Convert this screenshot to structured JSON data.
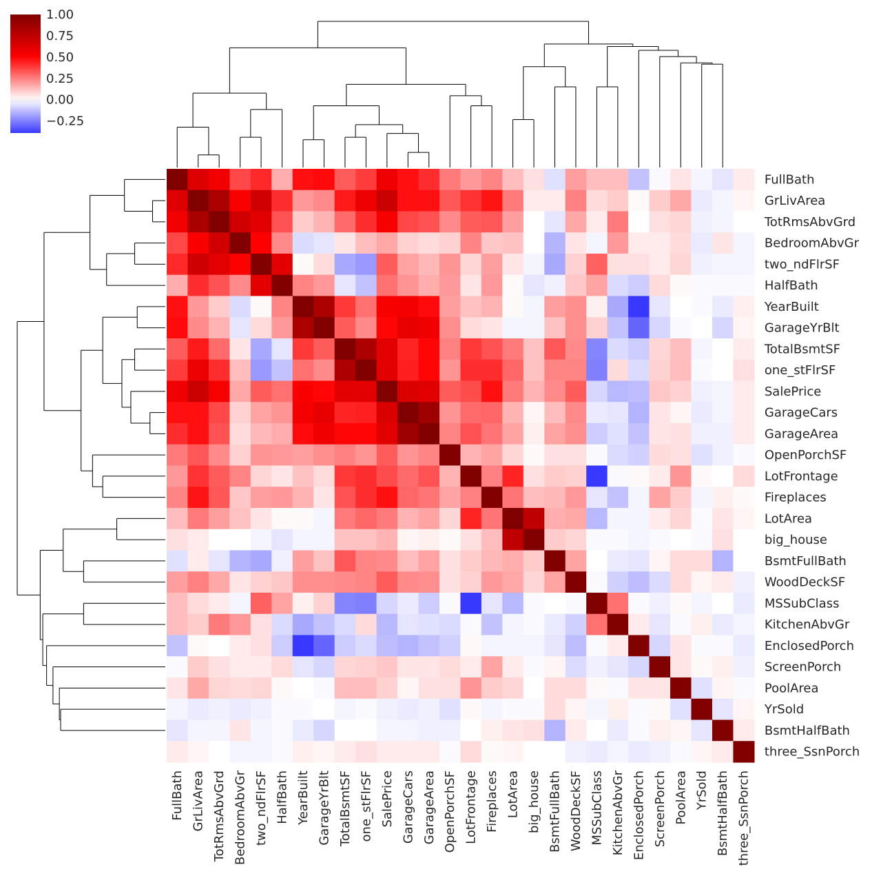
{
  "chart_data": {
    "type": "heatmap",
    "variant": "clustermap",
    "title": "",
    "xlabel": "",
    "ylabel": "",
    "labels": [
      "FullBath",
      "GrLivArea",
      "TotRmsAbvGrd",
      "BedroomAbvGr",
      "two_ndFlrSF",
      "HalfBath",
      "YearBuilt",
      "GarageYrBlt",
      "TotalBsmtSF",
      "one_stFlrSF",
      "SalePrice",
      "GarageCars",
      "GarageArea",
      "OpenPorchSF",
      "LotFrontage",
      "Fireplaces",
      "LotArea",
      "big_house",
      "BsmtFullBath",
      "WoodDeckSF",
      "MSSubClass",
      "KitchenAbvGr",
      "EnclosedPorch",
      "ScreenPorch",
      "PoolArea",
      "YrSold",
      "BsmtHalfBath",
      "three_SsnPorch"
    ],
    "matrix": [
      [
        1.0,
        0.63,
        0.55,
        0.36,
        0.42,
        0.16,
        0.47,
        0.48,
        0.32,
        0.38,
        0.56,
        0.47,
        0.41,
        0.26,
        0.2,
        0.24,
        0.13,
        0.06,
        -0.06,
        0.19,
        0.13,
        0.13,
        -0.12,
        -0.01,
        0.05,
        -0.02,
        -0.05,
        0.04
      ],
      [
        0.63,
        1.0,
        0.83,
        0.52,
        0.69,
        0.41,
        0.2,
        0.23,
        0.45,
        0.57,
        0.71,
        0.47,
        0.47,
        0.33,
        0.4,
        0.46,
        0.26,
        0.04,
        0.04,
        0.25,
        0.07,
        0.1,
        0.01,
        0.1,
        0.17,
        -0.04,
        -0.02,
        0.02
      ],
      [
        0.55,
        0.83,
        1.0,
        0.68,
        0.62,
        0.34,
        0.1,
        0.15,
        0.29,
        0.41,
        0.53,
        0.36,
        0.34,
        0.23,
        0.32,
        0.33,
        0.19,
        0.0,
        -0.05,
        0.17,
        0.04,
        0.26,
        0.0,
        0.06,
        0.08,
        -0.03,
        -0.02,
        0.0
      ],
      [
        0.36,
        0.52,
        0.68,
        1.0,
        0.5,
        0.23,
        -0.07,
        -0.05,
        0.05,
        0.13,
        0.17,
        0.09,
        0.07,
        0.09,
        0.24,
        0.11,
        0.12,
        0.0,
        -0.15,
        0.05,
        -0.02,
        0.2,
        0.04,
        0.04,
        0.07,
        -0.04,
        0.05,
        -0.02
      ],
      [
        0.42,
        0.69,
        0.62,
        0.5,
        1.0,
        0.61,
        0.01,
        0.07,
        -0.17,
        -0.2,
        0.32,
        0.18,
        0.14,
        0.21,
        0.08,
        0.19,
        0.05,
        -0.02,
        -0.17,
        0.09,
        0.31,
        0.06,
        0.06,
        0.04,
        0.08,
        -0.03,
        -0.02,
        -0.02
      ],
      [
        0.16,
        0.41,
        0.34,
        0.23,
        0.61,
        1.0,
        0.24,
        0.2,
        -0.05,
        -0.12,
        0.28,
        0.21,
        0.16,
        0.2,
        0.05,
        0.2,
        0.01,
        -0.05,
        -0.03,
        0.11,
        0.18,
        -0.07,
        -0.1,
        0.07,
        0.01,
        -0.01,
        -0.01,
        -0.01
      ],
      [
        0.47,
        0.2,
        0.1,
        -0.07,
        0.01,
        0.24,
        1.0,
        0.83,
        0.39,
        0.28,
        0.52,
        0.54,
        0.48,
        0.19,
        0.12,
        0.15,
        0.01,
        -0.02,
        0.19,
        0.22,
        0.03,
        -0.17,
        -0.39,
        -0.05,
        0.0,
        -0.01,
        -0.04,
        0.03
      ],
      [
        0.48,
        0.23,
        0.15,
        -0.05,
        0.07,
        0.2,
        0.83,
        1.0,
        0.32,
        0.23,
        0.49,
        0.59,
        0.56,
        0.22,
        0.07,
        0.05,
        -0.02,
        -0.02,
        0.12,
        0.22,
        0.09,
        -0.12,
        -0.3,
        -0.08,
        -0.01,
        0.0,
        -0.08,
        0.02
      ],
      [
        0.32,
        0.45,
        0.29,
        0.05,
        -0.17,
        -0.05,
        0.39,
        0.32,
        1.0,
        0.82,
        0.61,
        0.43,
        0.49,
        0.25,
        0.39,
        0.34,
        0.26,
        0.12,
        0.33,
        0.23,
        -0.24,
        -0.07,
        -0.1,
        0.08,
        0.13,
        -0.02,
        0.0,
        0.04
      ],
      [
        0.38,
        0.57,
        0.41,
        0.13,
        -0.2,
        -0.12,
        0.28,
        0.23,
        0.82,
        1.0,
        0.61,
        0.44,
        0.49,
        0.21,
        0.41,
        0.41,
        0.3,
        0.12,
        0.24,
        0.24,
        -0.25,
        0.07,
        -0.07,
        0.09,
        0.13,
        -0.01,
        0.0,
        0.06
      ],
      [
        0.56,
        0.71,
        0.53,
        0.17,
        0.32,
        0.28,
        0.52,
        0.49,
        0.61,
        0.61,
        1.0,
        0.64,
        0.62,
        0.32,
        0.35,
        0.47,
        0.26,
        0.15,
        0.23,
        0.32,
        -0.08,
        -0.14,
        -0.13,
        0.11,
        0.09,
        -0.03,
        -0.02,
        0.04
      ],
      [
        0.47,
        0.47,
        0.36,
        0.09,
        0.18,
        0.21,
        0.54,
        0.59,
        0.43,
        0.44,
        0.64,
        1.0,
        0.88,
        0.21,
        0.29,
        0.3,
        0.15,
        0.02,
        0.13,
        0.23,
        -0.04,
        -0.05,
        -0.15,
        0.05,
        0.02,
        -0.04,
        -0.02,
        0.04
      ],
      [
        0.41,
        0.47,
        0.34,
        0.07,
        0.14,
        0.16,
        0.48,
        0.56,
        0.49,
        0.49,
        0.62,
        0.88,
        1.0,
        0.24,
        0.34,
        0.27,
        0.18,
        0.03,
        0.18,
        0.22,
        -0.1,
        -0.06,
        -0.12,
        0.05,
        0.06,
        -0.03,
        -0.03,
        0.04
      ],
      [
        0.26,
        0.33,
        0.23,
        0.09,
        0.21,
        0.2,
        0.19,
        0.22,
        0.25,
        0.21,
        0.32,
        0.21,
        0.24,
        1.0,
        0.15,
        0.18,
        0.08,
        0.01,
        0.06,
        0.06,
        -0.01,
        -0.07,
        -0.09,
        0.07,
        0.06,
        -0.06,
        -0.03,
        -0.01
      ],
      [
        0.2,
        0.4,
        0.32,
        0.24,
        0.08,
        0.05,
        0.12,
        0.07,
        0.39,
        0.41,
        0.35,
        0.29,
        0.34,
        0.15,
        1.0,
        0.25,
        0.43,
        0.06,
        0.1,
        0.09,
        -0.39,
        -0.01,
        0.01,
        0.04,
        0.21,
        0.01,
        0.0,
        0.07
      ],
      [
        0.24,
        0.46,
        0.33,
        0.11,
        0.19,
        0.2,
        0.15,
        0.05,
        0.34,
        0.41,
        0.47,
        0.3,
        0.27,
        0.18,
        0.25,
        1.0,
        0.27,
        0.13,
        0.14,
        0.2,
        -0.05,
        -0.12,
        -0.02,
        0.18,
        0.1,
        -0.02,
        0.03,
        0.01
      ],
      [
        0.13,
        0.26,
        0.19,
        0.12,
        0.05,
        0.01,
        0.01,
        -0.02,
        0.26,
        0.3,
        0.26,
        0.15,
        0.18,
        0.08,
        0.43,
        0.27,
        1.0,
        0.75,
        0.16,
        0.17,
        -0.14,
        -0.02,
        -0.02,
        0.04,
        0.08,
        -0.01,
        0.05,
        0.02
      ],
      [
        0.06,
        0.04,
        0.0,
        0.0,
        -0.02,
        -0.05,
        -0.02,
        -0.02,
        0.12,
        0.12,
        0.15,
        0.02,
        0.03,
        0.01,
        0.06,
        0.13,
        0.75,
        1.0,
        0.1,
        0.08,
        -0.01,
        -0.01,
        -0.02,
        -0.01,
        0.0,
        -0.01,
        0.06,
        0.0
      ],
      [
        -0.06,
        0.04,
        -0.05,
        -0.15,
        -0.17,
        -0.03,
        0.19,
        0.12,
        0.33,
        0.24,
        0.23,
        0.13,
        0.18,
        0.06,
        0.1,
        0.14,
        0.16,
        0.1,
        1.0,
        0.18,
        0.0,
        -0.04,
        -0.05,
        0.02,
        0.07,
        0.07,
        -0.15,
        0.0
      ],
      [
        0.19,
        0.25,
        0.17,
        0.05,
        0.09,
        0.11,
        0.22,
        0.22,
        0.23,
        0.24,
        0.32,
        0.23,
        0.22,
        0.06,
        0.09,
        0.2,
        0.17,
        0.08,
        0.18,
        1.0,
        -0.01,
        -0.09,
        -0.13,
        -0.07,
        0.07,
        0.02,
        0.04,
        -0.03
      ],
      [
        0.13,
        0.07,
        0.04,
        -0.02,
        0.31,
        0.18,
        0.03,
        0.09,
        -0.24,
        -0.25,
        -0.08,
        -0.04,
        -0.1,
        -0.01,
        -0.39,
        -0.05,
        -0.14,
        -0.01,
        0.0,
        -0.01,
        1.0,
        0.28,
        -0.01,
        -0.03,
        0.01,
        -0.02,
        0.0,
        -0.04
      ],
      [
        0.13,
        0.1,
        0.26,
        0.2,
        0.06,
        -0.07,
        -0.17,
        -0.12,
        -0.07,
        0.07,
        -0.14,
        -0.05,
        -0.06,
        -0.07,
        -0.01,
        -0.12,
        -0.02,
        -0.01,
        -0.04,
        -0.09,
        0.28,
        1.0,
        0.04,
        -0.05,
        -0.01,
        0.03,
        -0.04,
        -0.02
      ],
      [
        -0.12,
        0.01,
        0.0,
        0.04,
        0.06,
        -0.1,
        -0.39,
        -0.3,
        -0.1,
        -0.07,
        -0.13,
        -0.15,
        -0.12,
        -0.09,
        0.01,
        -0.02,
        -0.02,
        -0.02,
        -0.05,
        -0.13,
        -0.01,
        0.04,
        1.0,
        -0.08,
        0.05,
        -0.01,
        -0.01,
        -0.04
      ],
      [
        -0.01,
        0.1,
        0.06,
        0.04,
        0.04,
        0.07,
        -0.05,
        -0.08,
        0.08,
        0.09,
        0.11,
        0.05,
        0.05,
        0.07,
        0.04,
        0.18,
        0.04,
        -0.01,
        0.02,
        -0.07,
        -0.03,
        -0.05,
        -0.08,
        1.0,
        0.05,
        0.01,
        0.03,
        -0.03
      ],
      [
        0.05,
        0.17,
        0.08,
        0.07,
        0.08,
        0.01,
        0.0,
        -0.01,
        0.13,
        0.13,
        0.09,
        0.02,
        0.06,
        0.06,
        0.21,
        0.1,
        0.08,
        0.0,
        0.07,
        0.07,
        0.01,
        -0.01,
        0.05,
        0.05,
        1.0,
        -0.06,
        0.02,
        -0.01
      ],
      [
        -0.02,
        -0.04,
        -0.03,
        -0.04,
        -0.03,
        -0.01,
        -0.01,
        0.0,
        -0.02,
        -0.01,
        -0.03,
        -0.04,
        -0.03,
        -0.06,
        0.01,
        -0.02,
        -0.01,
        -0.01,
        0.07,
        0.02,
        -0.02,
        0.03,
        -0.01,
        0.01,
        -0.06,
        1.0,
        -0.05,
        0.02
      ],
      [
        -0.05,
        -0.02,
        -0.02,
        0.05,
        -0.02,
        -0.01,
        -0.04,
        -0.08,
        0.0,
        0.0,
        -0.02,
        -0.02,
        -0.03,
        -0.03,
        0.0,
        0.03,
        0.05,
        0.06,
        -0.15,
        0.04,
        0.0,
        -0.04,
        -0.01,
        0.03,
        0.02,
        -0.05,
        1.0,
        0.04
      ],
      [
        0.04,
        0.02,
        0.0,
        -0.02,
        -0.02,
        -0.01,
        0.03,
        0.02,
        0.04,
        0.06,
        0.04,
        0.04,
        0.04,
        -0.01,
        0.07,
        0.01,
        0.02,
        0.0,
        0.0,
        -0.03,
        -0.04,
        -0.02,
        -0.04,
        -0.03,
        -0.01,
        0.02,
        0.04,
        1.0
      ]
    ],
    "dendrogram_merges": [
      [
        1,
        2,
        0.1
      ],
      [
        0,
        -1,
        0.32
      ],
      [
        3,
        4,
        0.24
      ],
      [
        -3,
        5,
        0.46
      ],
      [
        -2,
        -4,
        0.59
      ],
      [
        6,
        7,
        0.22
      ],
      [
        8,
        9,
        0.24
      ],
      [
        11,
        12,
        0.12
      ],
      [
        10,
        -8,
        0.27
      ],
      [
        -7,
        -9,
        0.34
      ],
      [
        -6,
        -10,
        0.49
      ],
      [
        14,
        15,
        0.49
      ],
      [
        13,
        -12,
        0.57
      ],
      [
        -11,
        -13,
        0.66
      ],
      [
        -5,
        -14,
        0.95
      ],
      [
        16,
        17,
        0.38
      ],
      [
        18,
        19,
        0.64
      ],
      [
        -16,
        -17,
        0.8
      ],
      [
        20,
        21,
        0.64
      ],
      [
        25,
        26,
        0.82
      ],
      [
        24,
        -20,
        0.83
      ],
      [
        23,
        -21,
        0.88
      ],
      [
        22,
        -22,
        0.93
      ],
      [
        -19,
        -23,
        0.96
      ],
      [
        -18,
        -24,
        0.98
      ],
      [
        -15,
        -25,
        1.16
      ]
    ],
    "colorbar": {
      "vmin": -0.39,
      "vmax": 1.0,
      "ticks": [
        1.0,
        0.75,
        0.5,
        0.25,
        0.0,
        -0.25
      ],
      "tick_labels": [
        "1.00",
        "0.75",
        "0.50",
        "0.25",
        "0.00",
        "−0.25"
      ],
      "cmap": "seismic"
    }
  }
}
